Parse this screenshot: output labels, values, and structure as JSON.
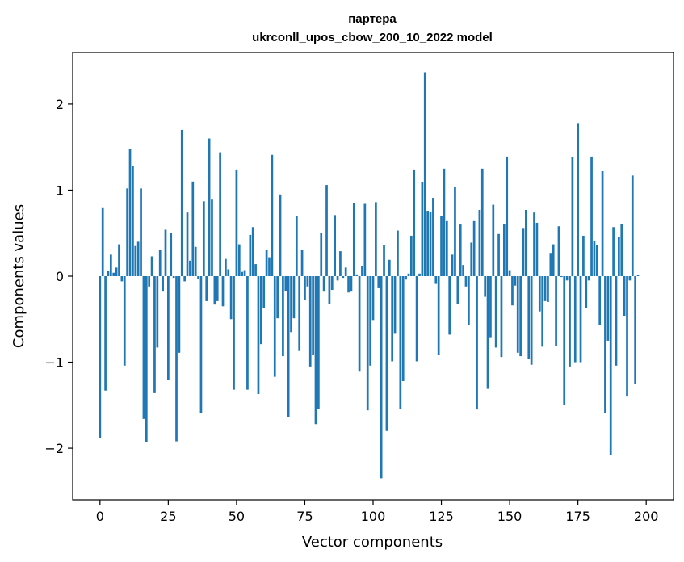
{
  "chart_data": {
    "type": "bar",
    "title_line1": "партера",
    "title_line2": "ukrconll_upos_cbow_200_10_2022 model",
    "xlabel": "Vector components",
    "ylabel": "Components values",
    "xlim": [
      -10,
      210
    ],
    "ylim": [
      -2.6,
      2.6
    ],
    "xticks": [
      0,
      25,
      50,
      75,
      100,
      125,
      150,
      175,
      200
    ],
    "yticks": [
      -2,
      -1,
      0,
      1,
      2
    ],
    "ytick_labels": [
      "−2",
      "−1",
      "0",
      "1",
      "2"
    ],
    "bar_color": "#1f77b4",
    "values": [
      -1.88,
      0.8,
      -1.33,
      0.06,
      0.25,
      0.04,
      0.1,
      0.37,
      -0.06,
      -1.04,
      1.02,
      1.48,
      1.28,
      0.35,
      0.4,
      1.02,
      -1.66,
      -1.93,
      -0.12,
      0.23,
      -1.36,
      -0.83,
      0.31,
      -0.18,
      0.54,
      -1.21,
      0.5,
      -0.02,
      -1.92,
      -0.89,
      1.7,
      -0.06,
      0.74,
      0.18,
      1.1,
      0.34,
      -0.03,
      -1.59,
      0.87,
      -0.29,
      1.6,
      0.89,
      -0.33,
      -0.29,
      1.44,
      -0.35,
      0.2,
      0.08,
      -0.5,
      -1.32,
      1.24,
      0.37,
      0.05,
      0.07,
      -1.32,
      0.48,
      0.57,
      0.14,
      -1.37,
      -0.79,
      -0.37,
      0.31,
      0.22,
      1.41,
      -1.17,
      -0.49,
      0.95,
      -0.93,
      -0.17,
      -1.64,
      -0.65,
      -0.49,
      0.7,
      -0.87,
      0.31,
      -0.28,
      -0.12,
      -1.05,
      -0.92,
      -1.72,
      -1.54,
      0.5,
      -0.18,
      1.06,
      -0.32,
      -0.16,
      0.71,
      -0.05,
      0.29,
      -0.02,
      0.1,
      -0.19,
      -0.18,
      0.85,
      0.02,
      -1.11,
      0.12,
      0.84,
      -1.56,
      -1.04,
      -0.51,
      0.86,
      -0.14,
      -2.35,
      0.36,
      -1.8,
      0.19,
      -0.99,
      -0.67,
      0.53,
      -1.54,
      -1.22,
      -0.04,
      0.03,
      0.47,
      1.24,
      -0.99,
      0.03,
      1.09,
      2.37,
      0.76,
      0.75,
      0.91,
      -0.09,
      -0.92,
      0.7,
      1.25,
      0.64,
      -0.68,
      0.25,
      1.04,
      -0.32,
      0.6,
      0.13,
      -0.12,
      -0.57,
      0.39,
      0.64,
      -1.55,
      0.77,
      1.25,
      -0.24,
      -1.31,
      -0.71,
      0.83,
      -0.83,
      0.49,
      -0.94,
      0.61,
      1.39,
      0.07,
      -0.34,
      -0.11,
      -0.89,
      -0.93,
      0.56,
      0.77,
      -0.96,
      -1.03,
      0.74,
      0.62,
      -0.41,
      -0.82,
      -0.29,
      -0.3,
      0.27,
      0.37,
      -0.81,
      0.58,
      -0.01,
      -1.5,
      -0.05,
      -1.05,
      1.38,
      -1.0,
      1.78,
      -1.0,
      0.47,
      -0.37,
      -0.05,
      1.39,
      0.41,
      0.36,
      -0.57,
      1.22,
      -1.59,
      -0.75,
      -2.08,
      0.57,
      -1.04,
      0.46,
      0.61,
      -0.46,
      -1.4,
      -0.05,
      1.17,
      -1.25,
      0.01
    ]
  }
}
